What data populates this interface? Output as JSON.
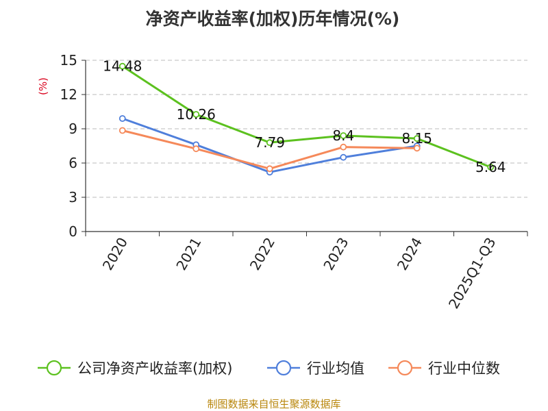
{
  "chart_data": {
    "type": "line",
    "title": "净资产收益率(加权)历年情况(%)",
    "ylabel": "(%)",
    "xlabel": "",
    "ylim": [
      0,
      15
    ],
    "yticks": [
      0,
      3,
      6,
      9,
      12,
      15
    ],
    "categories": [
      "2020",
      "2021",
      "2022",
      "2023",
      "2024",
      "2025Q1-Q3"
    ],
    "grid": true,
    "legend_position": "bottom",
    "series": [
      {
        "name": "公司净资产收益率(加权)",
        "color": "#5cc11f",
        "values": [
          14.48,
          10.26,
          7.79,
          8.4,
          8.15,
          5.64
        ],
        "labels": [
          "14.48",
          "10.26",
          "7.79",
          "8.4",
          "8.15",
          "5.64"
        ]
      },
      {
        "name": "行业均值",
        "color": "#4f7fdb",
        "values": [
          9.9,
          7.6,
          5.2,
          6.5,
          7.5,
          null
        ]
      },
      {
        "name": "行业中位数",
        "color": "#f5895a",
        "values": [
          8.85,
          7.25,
          5.5,
          7.4,
          7.3,
          null
        ]
      }
    ]
  },
  "source": "制图数据来自恒生聚源数据库"
}
